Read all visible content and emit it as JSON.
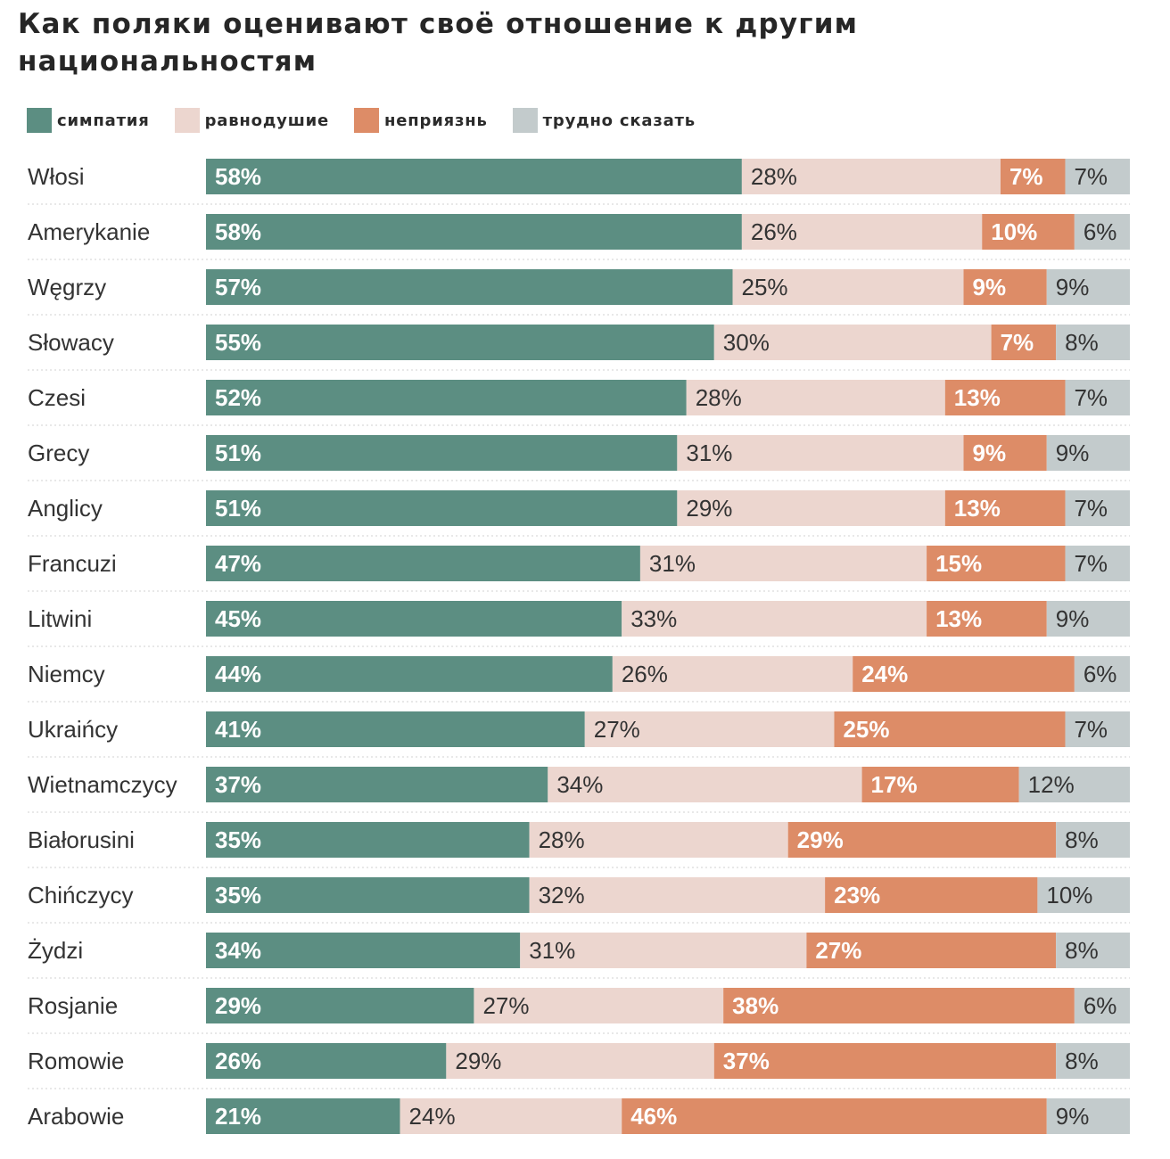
{
  "title": "Как поляки оценивают своё отношение к другим национальностям",
  "legend": {
    "sympathy": "симпатия",
    "indifference": "равнодушие",
    "dislike": "неприязнь",
    "hard_to_say": "трудно сказать"
  },
  "colors": {
    "sympathy": "#5c8e82",
    "indifference": "#ecd6cf",
    "dislike": "#dd8c67",
    "hard_to_say": "#c3cbcc"
  },
  "chart_data": {
    "type": "bar",
    "orientation": "horizontal",
    "stacked": true,
    "title": "Как поляки оценивают своё отношение к другим национальностям",
    "xlabel": "",
    "ylabel": "",
    "xlim": [
      0,
      100
    ],
    "categories": [
      "Włosi",
      "Amerykanie",
      "Węgrzy",
      "Słowacy",
      "Czesi",
      "Grecy",
      "Anglicy",
      "Francuzi",
      "Litwini",
      "Niemcy",
      "Ukraińcy",
      "Wietnamczycy",
      "Białorusini",
      "Chińczycy",
      "Żydzi",
      "Rosjanie",
      "Romowie",
      "Arabowie"
    ],
    "series": [
      {
        "name": "симпатия",
        "key": "sympathy",
        "values": [
          58,
          58,
          57,
          55,
          52,
          51,
          51,
          47,
          45,
          44,
          41,
          37,
          35,
          35,
          34,
          29,
          26,
          21
        ]
      },
      {
        "name": "равнодушие",
        "key": "indifference",
        "values": [
          28,
          26,
          25,
          30,
          28,
          31,
          29,
          31,
          33,
          26,
          27,
          34,
          28,
          32,
          31,
          27,
          29,
          24
        ]
      },
      {
        "name": "неприязнь",
        "key": "dislike",
        "values": [
          7,
          10,
          9,
          7,
          13,
          9,
          13,
          15,
          13,
          24,
          25,
          17,
          29,
          23,
          27,
          38,
          37,
          46
        ]
      },
      {
        "name": "трудно сказать",
        "key": "hard_to_say",
        "values": [
          7,
          6,
          9,
          8,
          7,
          9,
          7,
          7,
          9,
          6,
          7,
          12,
          8,
          10,
          8,
          6,
          8,
          9
        ]
      }
    ]
  }
}
